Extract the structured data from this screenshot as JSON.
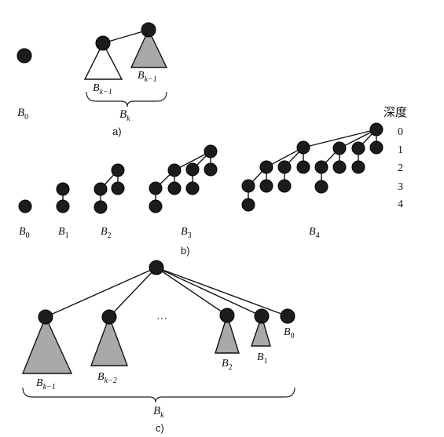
{
  "colors": {
    "node": "#1c1c1c",
    "subtree_gray": "#a9a9a9",
    "subtree_white": "#ffffff",
    "line": "#111111"
  },
  "part_a": {
    "b0": {
      "base": "B",
      "sub": "0"
    },
    "left_subtree": {
      "base": "B",
      "sub": "k−1"
    },
    "right_subtree": {
      "base": "B",
      "sub": "k−1"
    },
    "brace": {
      "base": "B",
      "sub": "k"
    },
    "caption": "a)"
  },
  "part_b": {
    "depth_header": "深度",
    "depths": [
      "0",
      "1",
      "2",
      "3",
      "4"
    ],
    "trees": [
      {
        "base": "B",
        "sub": "0"
      },
      {
        "base": "B",
        "sub": "1"
      },
      {
        "base": "B",
        "sub": "2"
      },
      {
        "base": "B",
        "sub": "3"
      },
      {
        "base": "B",
        "sub": "4"
      }
    ],
    "caption": "b)"
  },
  "part_c": {
    "ellipsis": "···",
    "subtrees": [
      {
        "base": "B",
        "sub": "k−1"
      },
      {
        "base": "B",
        "sub": "k−2"
      },
      {
        "base": "B",
        "sub": "2"
      },
      {
        "base": "B",
        "sub": "1"
      },
      {
        "base": "B",
        "sub": "0"
      }
    ],
    "brace": {
      "base": "B",
      "sub": "k"
    },
    "caption": "c)"
  }
}
